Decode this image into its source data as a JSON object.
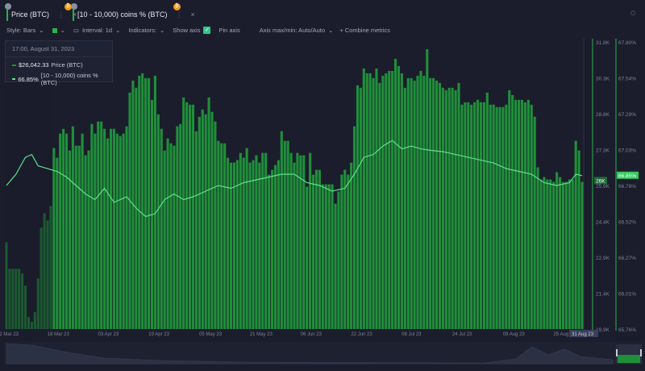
{
  "tabs": [
    {
      "label": "Price (BTC)",
      "badge": "₿"
    },
    {
      "label": "[10 - 10,000) coins % (BTC)",
      "badge": "₿"
    }
  ],
  "toolbar": {
    "style": "Style: Bars",
    "interval": "Interval: 1d",
    "indicators": "Indicators:",
    "show_axis": "Show axis",
    "pin_axis": "Pin axis",
    "axis_maxmin": "Axis max/min: Auto/Auto",
    "combine": "+ Combine metrics"
  },
  "tooltip": {
    "time": "17:00, August 31, 2023",
    "price_value": "$26,042.33",
    "price_label": "Price (BTC)",
    "pct_value": "66.85%",
    "pct_label": "[10 - 10,000) coins % (BTC)"
  },
  "colors": {
    "bars": "#1f8f3a",
    "line": "#5fe08a",
    "background": "#1b1d2c"
  },
  "chart_data": {
    "type": "bar",
    "x_start": "2023-03-02",
    "x_end": "2023-08-31",
    "x_ticks": [
      "02 Mar 23",
      "18 Mar 23",
      "03 Apr 23",
      "19 Apr 23",
      "05 May 23",
      "21 May 23",
      "06 Jun 23",
      "22 Jun 23",
      "08 Jul 23",
      "24 Jul 23",
      "09 Aug 23",
      "25 Aug 23"
    ],
    "x_tick_dates": [
      "2023-03-02",
      "2023-03-18",
      "2023-04-03",
      "2023-04-19",
      "2023-05-05",
      "2023-05-21",
      "2023-06-06",
      "2023-06-22",
      "2023-07-08",
      "2023-07-24",
      "2023-08-09",
      "2023-08-25"
    ],
    "crosshair_label": "31 Aug 23",
    "price_axis": {
      "ticks": [
        "31.8K",
        "30.3K",
        "28.8K",
        "27.3K",
        "25.9K",
        "24.4K",
        "22.9K",
        "21.4K",
        "19.9K"
      ],
      "range": [
        19.9,
        31.8
      ],
      "unit": "K USD",
      "current": "26K"
    },
    "pct_axis": {
      "ticks": [
        "67.80%",
        "67.54%",
        "67.29%",
        "67.03%",
        "66.78%",
        "66.52%",
        "66.27%",
        "66.01%",
        "65.76%"
      ],
      "range": [
        65.76,
        67.8
      ],
      "current": "66.85%"
    },
    "series": [
      {
        "name": "Price (BTC)",
        "type": "bar",
        "daily_values_k": [
          23.5,
          22.4,
          22.4,
          22.4,
          22.4,
          22.2,
          21.7,
          20.4,
          20.2,
          20.6,
          22.0,
          24.1,
          24.7,
          24.4,
          25.0,
          27.4,
          27.0,
          28.0,
          28.2,
          28.0,
          27.3,
          28.3,
          27.5,
          27.5,
          28.0,
          27.1,
          27.3,
          28.4,
          28.0,
          28.5,
          28.5,
          28.2,
          27.8,
          28.2,
          28.2,
          28.0,
          27.9,
          28.0,
          28.3,
          29.7,
          30.2,
          29.9,
          30.4,
          30.5,
          30.3,
          30.3,
          29.4,
          30.4,
          28.8,
          28.2,
          27.3,
          27.8,
          27.6,
          27.5,
          28.3,
          28.4,
          29.5,
          29.3,
          29.2,
          29.2,
          28.1,
          28.7,
          29.0,
          28.8,
          29.5,
          28.9,
          28.5,
          27.7,
          27.6,
          27.6,
          27.0,
          26.8,
          26.8,
          26.9,
          27.2,
          27.0,
          27.4,
          26.8,
          26.9,
          27.1,
          26.8,
          27.2,
          27.2,
          26.3,
          26.5,
          26.7,
          26.9,
          28.1,
          27.7,
          27.7,
          27.2,
          26.8,
          27.2,
          27.1,
          27.1,
          25.8,
          27.2,
          26.3,
          26.5,
          26.5,
          25.9,
          25.9,
          25.9,
          25.9,
          25.1,
          25.6,
          26.3,
          26.5,
          26.3,
          26.8,
          28.3,
          30.0,
          29.9,
          30.7,
          30.5,
          30.5,
          30.3,
          30.7,
          30.1,
          30.4,
          30.5,
          30.6,
          30.6,
          31.1,
          30.8,
          30.5,
          29.9,
          30.3,
          30.3,
          30.2,
          30.4,
          30.6,
          30.4,
          31.5,
          30.3,
          30.3,
          30.2,
          30.1,
          29.9,
          29.8,
          29.9,
          29.9,
          29.8,
          30.1,
          29.2,
          29.3,
          29.3,
          29.2,
          29.3,
          29.4,
          29.3,
          29.3,
          29.7,
          29.2,
          29.2,
          29.1,
          29.1,
          29.1,
          29.2,
          29.8,
          29.6,
          29.4,
          29.4,
          29.4,
          29.3,
          29.4,
          29.2,
          28.7,
          26.6,
          26.1,
          26.2,
          26.1,
          26.1,
          26.0,
          26.4,
          26.2,
          26.0,
          26.0,
          26.1,
          26.1,
          27.7,
          27.3,
          26.0
        ]
      },
      {
        "name": "[10 - 10,000) coins % (BTC)",
        "type": "line",
        "points": [
          [
            "2023-03-02",
            66.78
          ],
          [
            "2023-03-05",
            66.86
          ],
          [
            "2023-03-08",
            66.98
          ],
          [
            "2023-03-10",
            67.0
          ],
          [
            "2023-03-12",
            66.92
          ],
          [
            "2023-03-15",
            66.9
          ],
          [
            "2023-03-18",
            66.88
          ],
          [
            "2023-03-21",
            66.84
          ],
          [
            "2023-03-24",
            66.78
          ],
          [
            "2023-03-27",
            66.72
          ],
          [
            "2023-03-30",
            66.68
          ],
          [
            "2023-04-02",
            66.76
          ],
          [
            "2023-04-05",
            66.66
          ],
          [
            "2023-04-09",
            66.7
          ],
          [
            "2023-04-12",
            66.62
          ],
          [
            "2023-04-15",
            66.56
          ],
          [
            "2023-04-18",
            66.58
          ],
          [
            "2023-04-21",
            66.68
          ],
          [
            "2023-04-24",
            66.72
          ],
          [
            "2023-04-27",
            66.68
          ],
          [
            "2023-04-30",
            66.7
          ],
          [
            "2023-05-04",
            66.74
          ],
          [
            "2023-05-08",
            66.78
          ],
          [
            "2023-05-12",
            66.76
          ],
          [
            "2023-05-16",
            66.8
          ],
          [
            "2023-05-20",
            66.82
          ],
          [
            "2023-05-24",
            66.84
          ],
          [
            "2023-05-28",
            66.86
          ],
          [
            "2023-06-01",
            66.86
          ],
          [
            "2023-06-05",
            66.8
          ],
          [
            "2023-06-09",
            66.78
          ],
          [
            "2023-06-13",
            66.74
          ],
          [
            "2023-06-17",
            66.76
          ],
          [
            "2023-06-20",
            66.86
          ],
          [
            "2023-06-23",
            66.98
          ],
          [
            "2023-06-26",
            67.0
          ],
          [
            "2023-06-29",
            67.06
          ],
          [
            "2023-07-02",
            67.1
          ],
          [
            "2023-07-05",
            67.04
          ],
          [
            "2023-07-08",
            67.06
          ],
          [
            "2023-07-11",
            67.04
          ],
          [
            "2023-07-14",
            67.03
          ],
          [
            "2023-07-18",
            67.02
          ],
          [
            "2023-07-22",
            67.0
          ],
          [
            "2023-07-26",
            66.98
          ],
          [
            "2023-07-30",
            66.96
          ],
          [
            "2023-08-03",
            66.94
          ],
          [
            "2023-08-07",
            66.9
          ],
          [
            "2023-08-11",
            66.88
          ],
          [
            "2023-08-15",
            66.86
          ],
          [
            "2023-08-19",
            66.8
          ],
          [
            "2023-08-23",
            66.78
          ],
          [
            "2023-08-27",
            66.8
          ],
          [
            "2023-08-29",
            66.86
          ],
          [
            "2023-08-31",
            66.85
          ]
        ]
      }
    ],
    "grid": false
  }
}
